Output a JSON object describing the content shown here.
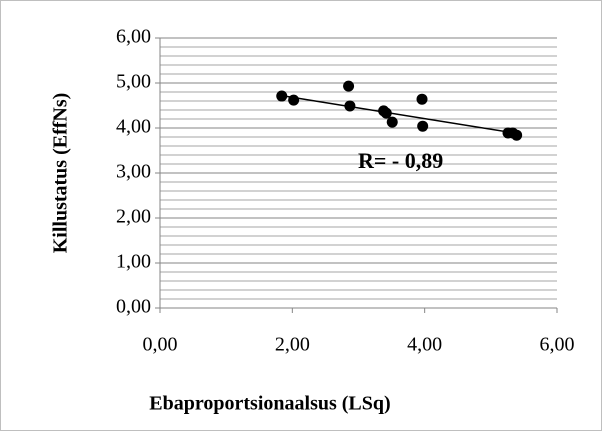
{
  "chart_data": {
    "type": "scatter",
    "x_label": "Ebaproportsionaalsus (LSq)",
    "y_label": "Killustatus (EffNs)",
    "annotation": "R= - 0,89",
    "series": [
      {
        "color": "#000000",
        "x": [
          1.84,
          2.02,
          2.85,
          2.87,
          3.38,
          3.42,
          3.51,
          3.96,
          3.97,
          5.26,
          5.33,
          5.39
        ],
        "values": [
          4.71,
          4.62,
          4.93,
          4.49,
          4.38,
          4.33,
          4.13,
          4.64,
          4.04,
          3.89,
          3.89,
          3.84
        ]
      }
    ],
    "trendline": {
      "color": "#000000",
      "x": [
        1.84,
        5.39
      ],
      "values": [
        4.72,
        3.88
      ]
    },
    "xlim": [
      0,
      6
    ],
    "ylim": [
      0,
      6
    ],
    "xticks": [
      {
        "value": 0,
        "label": "0,00"
      },
      {
        "value": 2,
        "label": "2,00"
      },
      {
        "value": 4,
        "label": "4,00"
      },
      {
        "value": 6,
        "label": "6,00"
      }
    ],
    "yticks": [
      {
        "value": 0,
        "label": "0,00"
      },
      {
        "value": 1,
        "label": "1,00"
      },
      {
        "value": 2,
        "label": "2,00"
      },
      {
        "value": 3,
        "label": "3,00"
      },
      {
        "value": 4,
        "label": "4,00"
      },
      {
        "value": 5,
        "label": "5,00"
      },
      {
        "value": 6,
        "label": "6,00"
      }
    ],
    "y_minor_ticks": [
      0.2,
      0.4,
      0.6,
      0.8,
      1.2,
      1.4,
      1.6,
      1.8,
      2.2,
      2.4,
      2.6,
      2.8,
      3.2,
      3.4,
      3.6,
      3.8,
      4.2,
      4.4,
      4.6,
      4.8,
      5.2,
      5.4,
      5.6,
      5.8
    ],
    "grid": true
  }
}
